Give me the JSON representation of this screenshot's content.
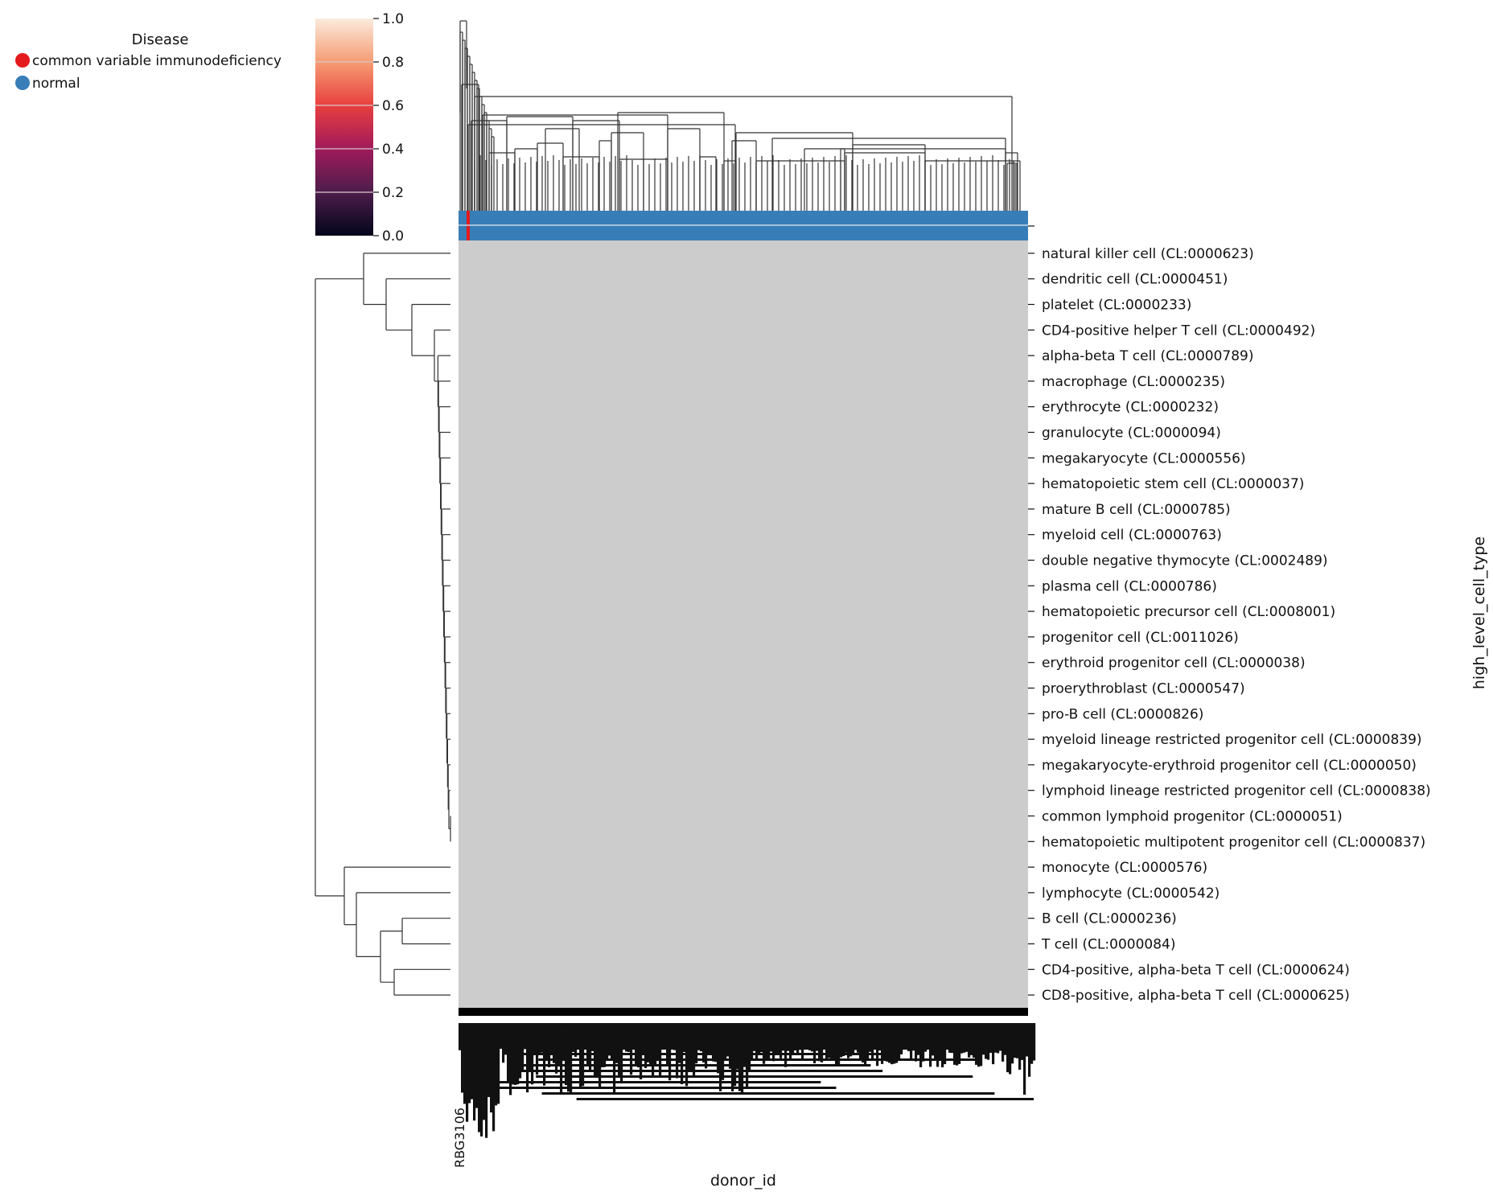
{
  "chart_data": {
    "type": "heatmap",
    "legend": {
      "title": "Disease",
      "placement": "top-left",
      "entries": [
        {
          "label": "common variable immunodeficiency",
          "color": "#e41a1c"
        },
        {
          "label": "normal",
          "color": "#377eb8"
        }
      ]
    },
    "colorbar": {
      "ticks": [
        "0.0",
        "0.2",
        "0.4",
        "0.6",
        "0.8",
        "1.0"
      ],
      "range": [
        0,
        1
      ],
      "colormap": "rocket"
    },
    "xlabel": "donor_id",
    "ylabel": "high_level_cell_type",
    "x_tick_sample_label": "RBG3106",
    "rows": [
      "natural killer cell (CL:0000623)",
      "dendritic cell (CL:0000451)",
      "platelet (CL:0000233)",
      "CD4-positive helper T cell (CL:0000492)",
      "alpha-beta T cell (CL:0000789)",
      "macrophage (CL:0000235)",
      "erythrocyte (CL:0000232)",
      "granulocyte (CL:0000094)",
      "megakaryocyte (CL:0000556)",
      "hematopoietic stem cell (CL:0000037)",
      "mature B cell (CL:0000785)",
      "myeloid cell (CL:0000763)",
      "double negative thymocyte (CL:0002489)",
      "plasma cell (CL:0000786)",
      "hematopoietic precursor cell (CL:0008001)",
      "progenitor cell (CL:0011026)",
      "erythroid progenitor cell (CL:0000038)",
      "proerythroblast (CL:0000547)",
      "pro-B cell (CL:0000826)",
      "myeloid lineage restricted progenitor cell (CL:0000839)",
      "megakaryocyte-erythroid progenitor cell (CL:0000050)",
      "lymphoid lineage restricted progenitor cell (CL:0000838)",
      "common lymphoid progenitor (CL:0000051)",
      "hematopoietic multipotent progenitor cell (CL:0000837)",
      "monocyte (CL:0000576)",
      "lymphocyte (CL:0000542)",
      "B cell (CL:0000236)",
      "T cell (CL:0000084)",
      "CD4-positive, alpha-beta T cell (CL:0000624)",
      "CD8-positive, alpha-beta T cell (CL:0000625)"
    ],
    "column_annotation": {
      "dominant": "normal",
      "minority": "common variable immunodeficiency"
    },
    "heatmap_fill_color": "#cccccc",
    "separator_color": "#000000"
  }
}
